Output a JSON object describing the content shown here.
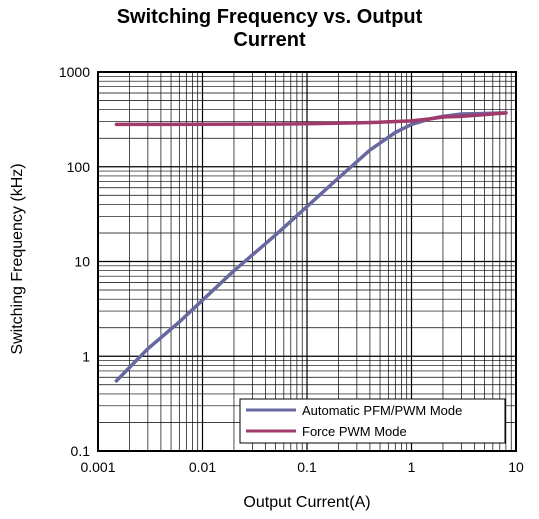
{
  "chart_data": {
    "type": "line",
    "title_line1": "Switching Frequency vs. Output",
    "title_line2": "Current",
    "xlabel": "Output Current(A)",
    "ylabel": "Switching Frequency (kHz)",
    "x_scale": "log",
    "y_scale": "log",
    "xlim": [
      0.001,
      10
    ],
    "ylim": [
      0.1,
      1000
    ],
    "x_ticks": [
      "0.001",
      "0.01",
      "0.1",
      "1",
      "10"
    ],
    "y_ticks": [
      "0.1",
      "1",
      "10",
      "100",
      "1000"
    ],
    "grid": true,
    "legend_position": "bottom-right",
    "series": [
      {
        "name": "Automatic PFM/PWM Mode",
        "color": "#6868a0",
        "x": [
          0.0015,
          0.003,
          0.006,
          0.01,
          0.02,
          0.05,
          0.1,
          0.2,
          0.4,
          0.7,
          1.0,
          1.5,
          2.0,
          3.0,
          5.0,
          8.0
        ],
        "y": [
          0.55,
          1.2,
          2.3,
          3.9,
          8.0,
          19,
          38,
          76,
          150,
          230,
          280,
          320,
          340,
          360,
          365,
          370
        ]
      },
      {
        "name": "Force PWM Mode",
        "color": "#a03a6a",
        "x": [
          0.0015,
          0.005,
          0.01,
          0.05,
          0.1,
          0.3,
          0.5,
          1.0,
          1.5,
          2.0,
          3.0,
          5.0,
          8.0
        ],
        "y": [
          280,
          280,
          281,
          282,
          285,
          290,
          295,
          305,
          320,
          335,
          340,
          355,
          370
        ]
      }
    ]
  }
}
